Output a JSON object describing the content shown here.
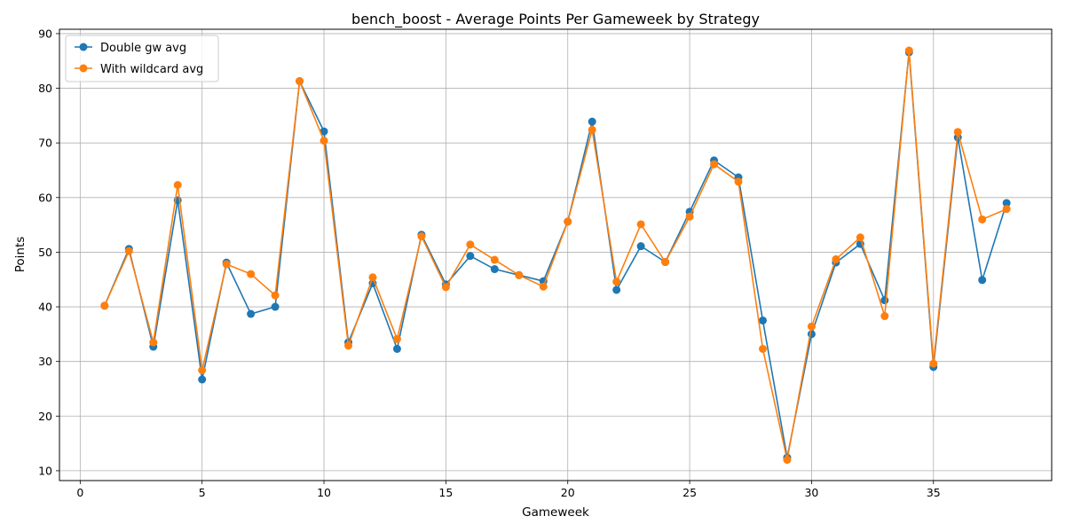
{
  "chart_data": {
    "type": "line",
    "title": "bench_boost - Average Points Per Gameweek by Strategy",
    "xlabel": "Gameweek",
    "ylabel": "Points",
    "xlim": [
      -0.85,
      39.85
    ],
    "ylim": [
      8.2,
      90.8
    ],
    "xticks": [
      0,
      5,
      10,
      15,
      20,
      25,
      30,
      35
    ],
    "yticks": [
      10,
      20,
      30,
      40,
      50,
      60,
      70,
      80,
      90
    ],
    "grid": true,
    "legend_position": "upper-left",
    "x": [
      1,
      2,
      3,
      4,
      5,
      6,
      7,
      8,
      9,
      10,
      11,
      12,
      13,
      14,
      15,
      16,
      17,
      18,
      19,
      20,
      21,
      22,
      23,
      24,
      25,
      26,
      27,
      28,
      29,
      30,
      31,
      32,
      33,
      34,
      35,
      36,
      37,
      38
    ],
    "series": [
      {
        "name": "Double gw avg",
        "color": "#1f77b4",
        "marker": "circle",
        "values": [
          40.2,
          50.6,
          32.7,
          59.5,
          26.7,
          48.1,
          38.7,
          40.0,
          81.3,
          72.1,
          33.5,
          44.3,
          32.3,
          53.2,
          44.1,
          49.3,
          46.9,
          45.8,
          44.7,
          55.6,
          73.9,
          43.1,
          51.1,
          48.2,
          57.4,
          66.8,
          63.7,
          37.5,
          12.4,
          35.0,
          48.1,
          51.5,
          41.2,
          86.6,
          29.0,
          71.0,
          44.9,
          59.0
        ]
      },
      {
        "name": "With wildcard avg",
        "color": "#ff7f0e",
        "marker": "circle",
        "values": [
          40.2,
          50.2,
          33.5,
          62.3,
          28.4,
          47.8,
          46.0,
          42.1,
          81.3,
          70.4,
          32.9,
          45.4,
          34.1,
          52.9,
          43.6,
          51.4,
          48.6,
          45.8,
          43.7,
          55.6,
          72.4,
          44.6,
          55.1,
          48.2,
          56.5,
          66.1,
          62.9,
          32.3,
          12.0,
          36.4,
          48.7,
          52.7,
          38.3,
          86.9,
          29.6,
          72.0,
          56.0,
          57.9
        ]
      }
    ]
  }
}
